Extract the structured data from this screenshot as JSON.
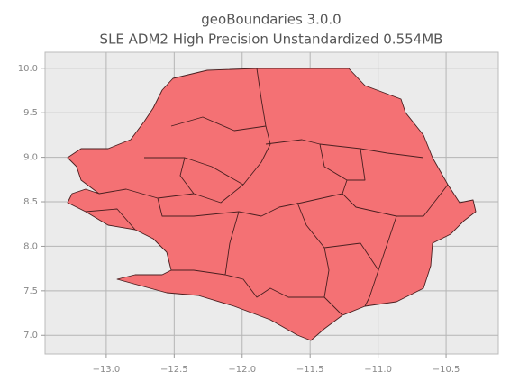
{
  "chart_data": {
    "type": "map",
    "title": "geoBoundaries 3.0.0",
    "subtitle": "SLE ADM2 High Precision Unstandardized 0.554MB",
    "xlim": [
      -13.45,
      -10.116
    ],
    "ylim": [
      6.79,
      10.18
    ],
    "xticks": [
      {
        "value": -13.0,
        "label": "−13.0"
      },
      {
        "value": -12.5,
        "label": "−12.5"
      },
      {
        "value": -12.0,
        "label": "−12.0"
      },
      {
        "value": -11.5,
        "label": "−11.5"
      },
      {
        "value": -11.0,
        "label": "−11.0"
      },
      {
        "value": -10.5,
        "label": "−10.5"
      }
    ],
    "yticks": [
      {
        "value": 10.0,
        "label": "10.0"
      },
      9.5,
      {
        "value": 9.0,
        "label": "9.0"
      },
      8.5,
      {
        "value": 8.0,
        "label": "8.0"
      },
      7.5,
      {
        "value": 7.0,
        "label": "7.0"
      }
    ],
    "grid": true,
    "color": "#f47174"
  }
}
